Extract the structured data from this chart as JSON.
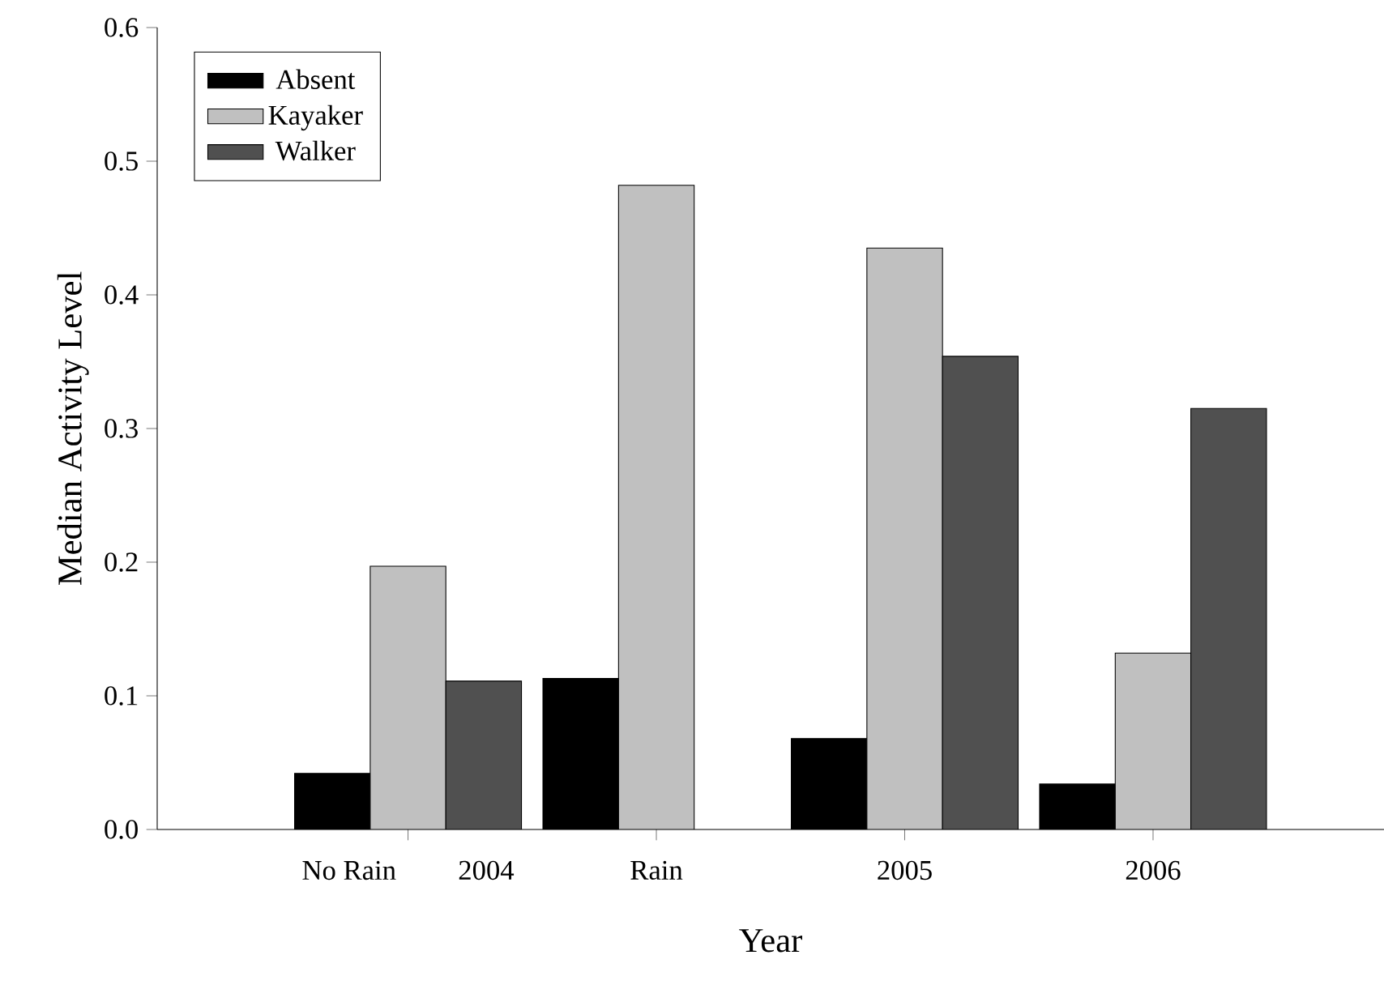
{
  "chart_data": {
    "type": "bar",
    "xlabel": "Year",
    "ylabel": "Median Activity Level",
    "categories": [
      "No Rain",
      "Rain",
      "2005",
      "2006"
    ],
    "annotations": [
      "2004"
    ],
    "series": [
      {
        "name": "Absent",
        "color": "#000000",
        "values": [
          0.042,
          0.113,
          0.068,
          0.034
        ]
      },
      {
        "name": "Kayaker",
        "color": "#c0c0c0",
        "values": [
          0.197,
          0.482,
          0.435,
          0.132
        ]
      },
      {
        "name": "Walker",
        "color": "#505050",
        "values": [
          0.111,
          null,
          0.354,
          0.315
        ]
      }
    ],
    "ylim": [
      0,
      0.6
    ],
    "yticks": [
      {
        "value": 0,
        "label": "0.0"
      },
      {
        "value": 0.1,
        "label": "0.1"
      },
      {
        "value": 0.2,
        "label": "0.2"
      },
      {
        "value": 0.3,
        "label": "0.3"
      },
      {
        "value": 0.4,
        "label": "0.4"
      },
      {
        "value": 0.5,
        "label": "0.5"
      },
      {
        "value": 0.6,
        "label": "0.6"
      }
    ],
    "grid": false,
    "legend": "top left"
  }
}
